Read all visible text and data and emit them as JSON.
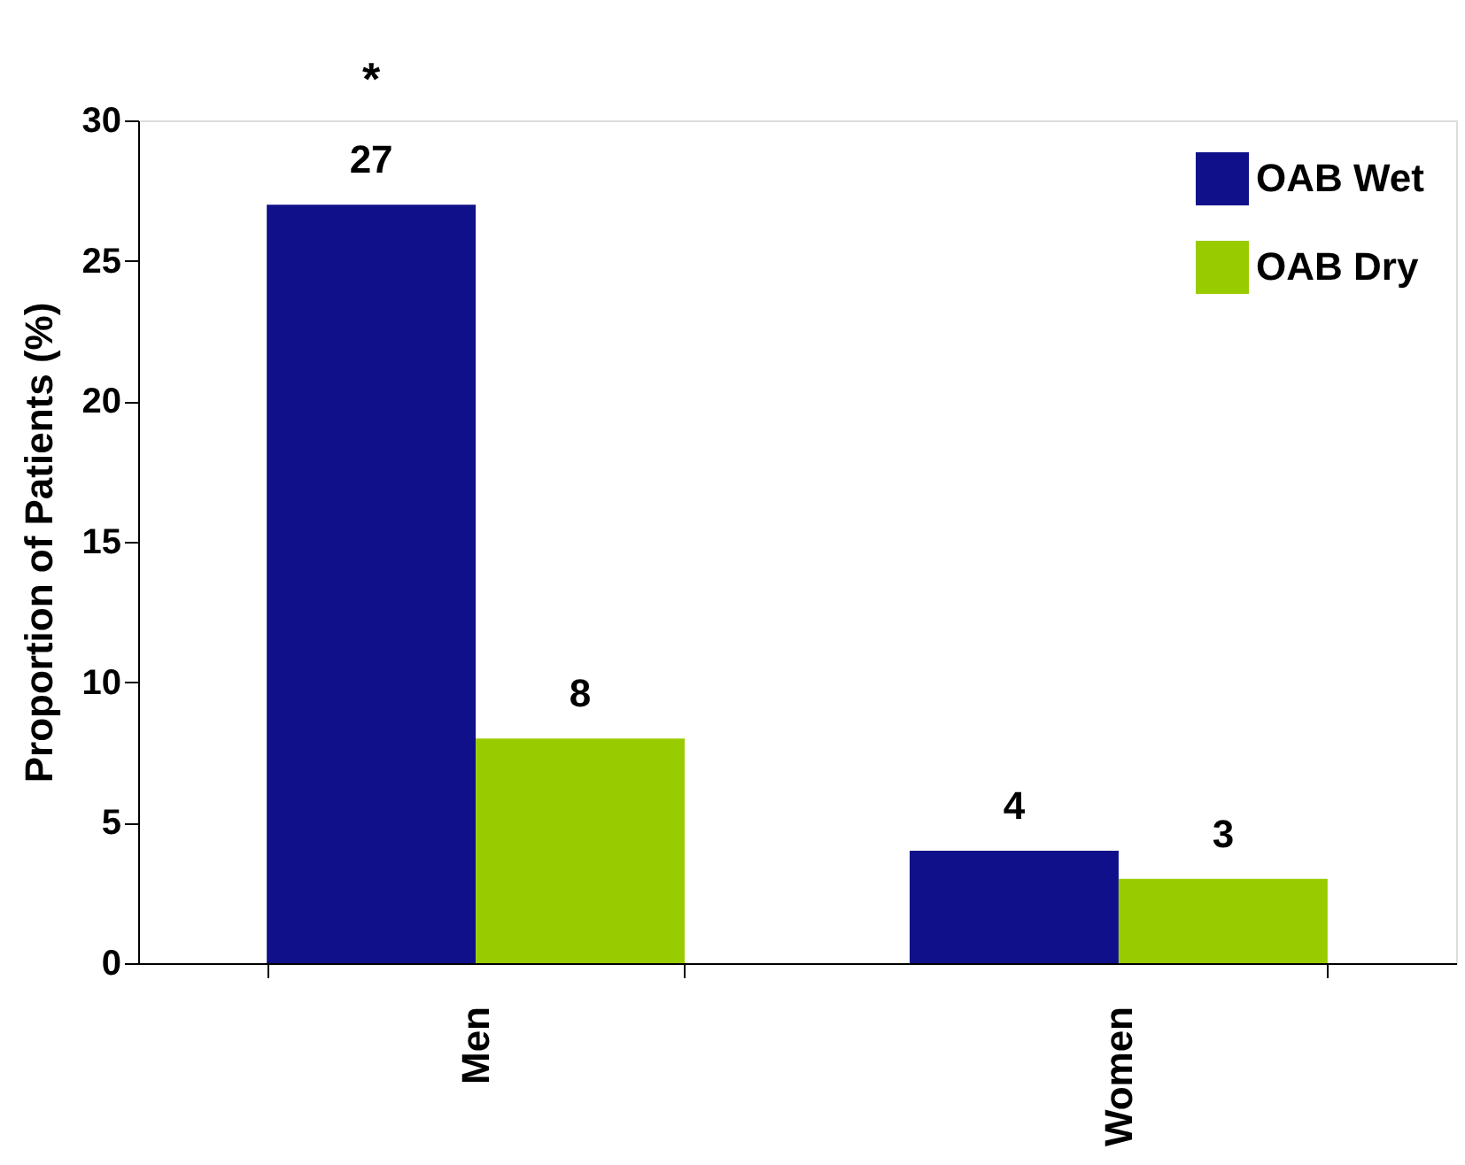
{
  "chart_data": {
    "type": "bar",
    "ylabel": "Proportion of Patients (%)",
    "categories": [
      "Men",
      "Women"
    ],
    "series": [
      {
        "name": "OAB Wet",
        "color": "#10108a",
        "values": [
          27,
          4
        ]
      },
      {
        "name": "OAB Dry",
        "color": "#99cc00",
        "values": [
          8,
          3
        ]
      }
    ],
    "ylim": [
      0,
      30
    ],
    "yticks": [
      0,
      5,
      10,
      15,
      20,
      25,
      30
    ],
    "grid": false,
    "legend": "top right",
    "data_labels": true,
    "annotations": [
      "*"
    ]
  }
}
